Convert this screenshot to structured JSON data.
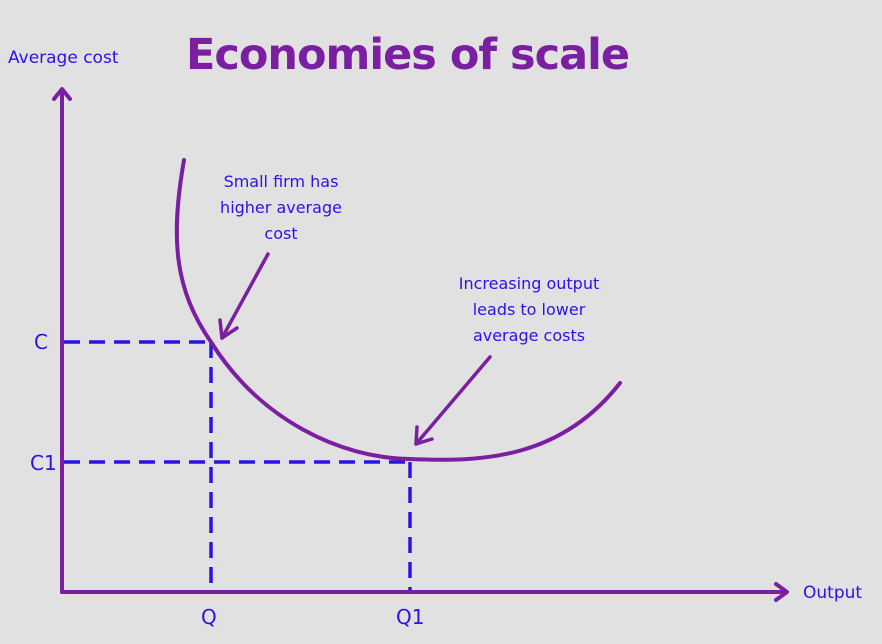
{
  "title": "Economies of scale",
  "y_axis_label": "Average cost",
  "x_axis_label": "Output",
  "y_ticks": [
    "C",
    "C1"
  ],
  "x_ticks": [
    "Q",
    "Q1"
  ],
  "annotations": {
    "small_firm": [
      "Small firm has",
      "higher average",
      "cost"
    ],
    "increasing_output": [
      "Increasing output",
      "leads to lower",
      "average costs"
    ]
  },
  "colors": {
    "background": "#e1e1e1",
    "curve_and_axes": "#7b1fa2",
    "title": "#7b1fa2",
    "guides_and_text": "#2b12e8"
  }
}
